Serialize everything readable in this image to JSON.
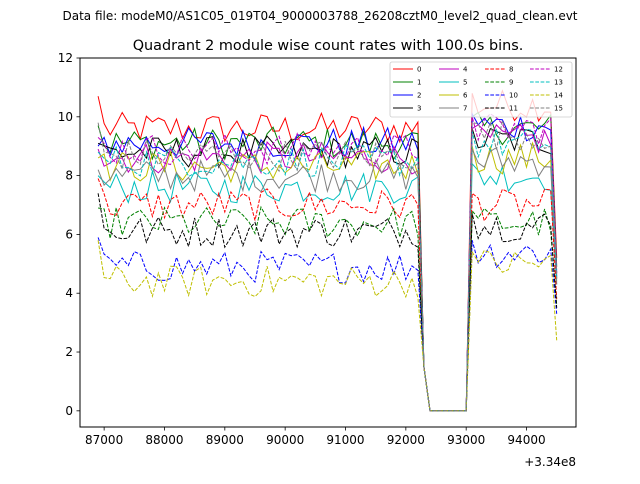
{
  "figure": {
    "suptitle": "Data file: modeM0/AS1C05_019T04_9000003788_26208cztM0_level2_quad_clean.evt"
  },
  "chart_data": {
    "type": "line",
    "title": "Quadrant 2 module wise count rates with 100.0s bins.",
    "xlabel": "",
    "ylabel": "",
    "x_offset_label": "+3.34e8",
    "xlim": [
      86600,
      94820
    ],
    "ylim": [
      -0.55,
      12.0
    ],
    "xticks": [
      87000,
      88000,
      89000,
      90000,
      91000,
      92000,
      93000,
      94000
    ],
    "xtick_labels": [
      "87000",
      "88000",
      "89000",
      "90000",
      "91000",
      "92000",
      "93000",
      "94000"
    ],
    "yticks": [
      0,
      2,
      4,
      6,
      8,
      10,
      12
    ],
    "ytick_labels": [
      "0",
      "2",
      "4",
      "6",
      "8",
      "10",
      "12"
    ],
    "grid": false,
    "legend_position": "top-right",
    "x_start": 86900,
    "x_step": 100,
    "gap_start": 92400,
    "gap_end": 93000,
    "x_end": 94500,
    "series": [
      {
        "name": "0",
        "color": "#ff0000",
        "linestyle": "solid",
        "level": 9.6,
        "first": 10.7,
        "after": 10.8,
        "end": 5.2
      },
      {
        "name": "1",
        "color": "#008000",
        "linestyle": "solid",
        "level": 9.1,
        "first": 9.7,
        "after": 10.0,
        "end": 4.9
      },
      {
        "name": "2",
        "color": "#0000ff",
        "linestyle": "solid",
        "level": 9.1,
        "first": 9.0,
        "after": 10.1,
        "end": 4.7
      },
      {
        "name": "3",
        "color": "#000000",
        "linestyle": "solid",
        "level": 8.8,
        "first": 9.1,
        "after": 9.6,
        "end": 4.5
      },
      {
        "name": "4",
        "color": "#bf00bf",
        "linestyle": "solid",
        "level": 8.6,
        "first": 8.9,
        "after": 9.6,
        "end": 4.6
      },
      {
        "name": "5",
        "color": "#00bfbf",
        "linestyle": "solid",
        "level": 7.6,
        "first": 8.0,
        "after": 8.4,
        "end": 4.3
      },
      {
        "name": "6",
        "color": "#bfbf00",
        "linestyle": "solid",
        "level": 8.3,
        "first": 8.6,
        "after": 9.0,
        "end": 4.4
      },
      {
        "name": "7",
        "color": "#808080",
        "linestyle": "solid",
        "level": 8.0,
        "first": 8.2,
        "after": 8.9,
        "end": 4.3
      },
      {
        "name": "8",
        "color": "#ff0000",
        "linestyle": "dashed",
        "level": 7.0,
        "first": 7.9,
        "after": 7.4,
        "end": 3.8
      },
      {
        "name": "9",
        "color": "#008000",
        "linestyle": "dashed",
        "level": 6.4,
        "first": 6.9,
        "after": 6.8,
        "end": 3.6
      },
      {
        "name": "10",
        "color": "#0000ff",
        "linestyle": "dashed",
        "level": 4.9,
        "first": 5.9,
        "after": 5.8,
        "end": 3.3
      },
      {
        "name": "11",
        "color": "#000000",
        "linestyle": "dashed",
        "level": 6.1,
        "first": 7.4,
        "after": 6.7,
        "end": 3.5
      },
      {
        "name": "12",
        "color": "#bf00bf",
        "linestyle": "dashed",
        "level": 8.9,
        "first": 9.3,
        "after": 10.0,
        "end": 4.7
      },
      {
        "name": "13",
        "color": "#00bfbf",
        "linestyle": "dashed",
        "level": 8.5,
        "first": 8.8,
        "after": 9.5,
        "end": 4.5
      },
      {
        "name": "14",
        "color": "#bfbf00",
        "linestyle": "dashed",
        "level": 4.4,
        "first": 5.8,
        "after": 5.4,
        "end": 2.4
      },
      {
        "name": "15",
        "color": "#808080",
        "linestyle": "dashed",
        "level": 8.7,
        "first": 9.8,
        "after": 9.8,
        "end": 4.6
      }
    ]
  }
}
